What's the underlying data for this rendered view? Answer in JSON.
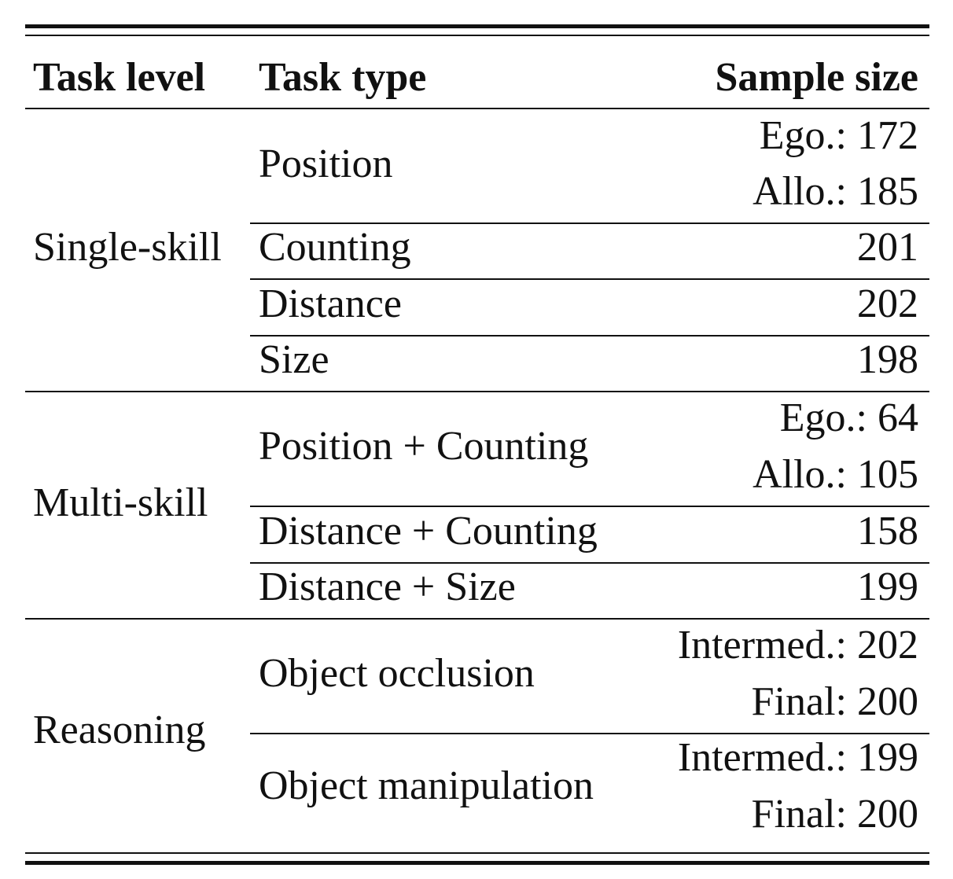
{
  "table": {
    "headers": {
      "task_level": "Task level",
      "task_type": "Task type",
      "sample_size": "Sample size"
    },
    "groups": [
      {
        "level": "Single-skill",
        "rows": [
          {
            "type": "Position",
            "samples": [
              "Ego.: 172",
              "Allo.: 185"
            ]
          },
          {
            "type": "Counting",
            "samples": [
              "201"
            ]
          },
          {
            "type": "Distance",
            "samples": [
              "202"
            ]
          },
          {
            "type": "Size",
            "samples": [
              "198"
            ]
          }
        ]
      },
      {
        "level": "Multi-skill",
        "rows": [
          {
            "type": "Position + Counting",
            "samples": [
              "Ego.: 64",
              "Allo.: 105"
            ]
          },
          {
            "type": "Distance + Counting",
            "samples": [
              "158"
            ]
          },
          {
            "type": "Distance + Size",
            "samples": [
              "199"
            ]
          }
        ]
      },
      {
        "level": "Reasoning",
        "rows": [
          {
            "type": "Object occlusion",
            "samples": [
              "Intermed.: 202",
              "Final: 200"
            ]
          },
          {
            "type": "Object manipulation",
            "samples": [
              "Intermed.: 199",
              "Final: 200"
            ]
          }
        ]
      }
    ]
  }
}
